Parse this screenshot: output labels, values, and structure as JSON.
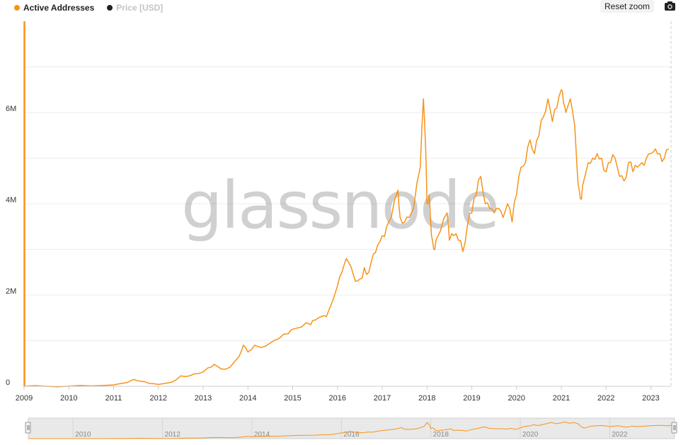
{
  "legend": {
    "items": [
      {
        "label": "Active Addresses",
        "color": "#f7931a",
        "active": true
      },
      {
        "label": "Price [USD]",
        "color": "#222222",
        "active": false
      }
    ]
  },
  "toolbar": {
    "reset_zoom_label": "Reset zoom",
    "camera_icon": "camera-icon"
  },
  "watermark": "glassnode",
  "chart_data": {
    "type": "line",
    "title": "",
    "xlabel": "",
    "ylabel": "",
    "x_ticks": [
      "2009",
      "2010",
      "2011",
      "2012",
      "2013",
      "2014",
      "2015",
      "2016",
      "2017",
      "2018",
      "2019",
      "2020",
      "2021",
      "2022",
      "2023"
    ],
    "y_ticks": [
      "0",
      "2M",
      "4M",
      "6M"
    ],
    "xlim": [
      2009.0,
      2023.45
    ],
    "ylim": [
      0,
      8000000
    ],
    "grid": true,
    "legend_position": "top-left",
    "series": [
      {
        "name": "Active Addresses",
        "color": "#f7931a",
        "x": [
          2009.0,
          2009.5,
          2010.0,
          2010.5,
          2011.0,
          2011.3,
          2011.45,
          2011.6,
          2011.8,
          2012.0,
          2012.3,
          2012.5,
          2012.7,
          2012.9,
          2013.1,
          2013.25,
          2013.4,
          2013.6,
          2013.8,
          2013.9,
          2014.0,
          2014.15,
          2014.3,
          2014.5,
          2014.7,
          2014.9,
          2015.0,
          2015.2,
          2015.4,
          2015.5,
          2015.7,
          2015.8,
          2016.0,
          2016.1,
          2016.2,
          2016.4,
          2016.5,
          2016.6,
          2016.7,
          2016.8,
          2016.9,
          2017.0,
          2017.1,
          2017.2,
          2017.35,
          2017.4,
          2017.5,
          2017.6,
          2017.7,
          2017.85,
          2017.92,
          2017.97,
          2018.0,
          2018.05,
          2018.1,
          2018.15,
          2018.2,
          2018.3,
          2018.45,
          2018.5,
          2018.6,
          2018.7,
          2018.8,
          2018.9,
          2019.0,
          2019.1,
          2019.2,
          2019.3,
          2019.4,
          2019.5,
          2019.6,
          2019.7,
          2019.8,
          2019.9,
          2020.0,
          2020.1,
          2020.2,
          2020.3,
          2020.4,
          2020.5,
          2020.6,
          2020.7,
          2020.8,
          2020.9,
          2021.0,
          2021.05,
          2021.1,
          2021.2,
          2021.3,
          2021.35,
          2021.4,
          2021.45,
          2021.5,
          2021.6,
          2021.7,
          2021.8,
          2021.9,
          2022.0,
          2022.1,
          2022.2,
          2022.3,
          2022.4,
          2022.5,
          2022.6,
          2022.7,
          2022.8,
          2022.9,
          2023.0,
          2023.1,
          2023.2,
          2023.3,
          2023.4
        ],
        "values": [
          0,
          0,
          2000,
          8000,
          30000,
          80000,
          150000,
          110000,
          60000,
          40000,
          90000,
          230000,
          230000,
          280000,
          400000,
          480000,
          380000,
          420000,
          650000,
          900000,
          750000,
          900000,
          850000,
          950000,
          1050000,
          1150000,
          1250000,
          1300000,
          1350000,
          1450000,
          1550000,
          1650000,
          2200000,
          2500000,
          2800000,
          2300000,
          2350000,
          2600000,
          2500000,
          2900000,
          3100000,
          3300000,
          3500000,
          3700000,
          4300000,
          3700000,
          3600000,
          3700000,
          3900000,
          4800000,
          6300000,
          5200000,
          4000000,
          4200000,
          3300000,
          3000000,
          3200000,
          3400000,
          3800000,
          3200000,
          3300000,
          3200000,
          2950000,
          3500000,
          3800000,
          4200000,
          4600000,
          4000000,
          3900000,
          3800000,
          3900000,
          3700000,
          4000000,
          3600000,
          4200000,
          4800000,
          4900000,
          5400000,
          5100000,
          5500000,
          5900000,
          6300000,
          5800000,
          6100000,
          6500000,
          6200000,
          6000000,
          6300000,
          5700000,
          4800000,
          4300000,
          4100000,
          4500000,
          4900000,
          5000000,
          5100000,
          5000000,
          4700000,
          4900000,
          5000000,
          4600000,
          4500000,
          4900000,
          4700000,
          4800000,
          4900000,
          5000000,
          5100000,
          5200000,
          5100000,
          5000000,
          5200000
        ]
      }
    ]
  }
}
